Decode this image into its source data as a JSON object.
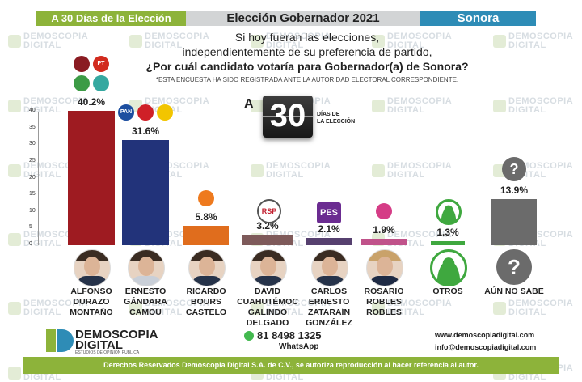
{
  "header": {
    "left": "A 30 Días de la Elección",
    "center": "Elección Gobernador 2021",
    "right": "Sonora"
  },
  "question": {
    "line1": "Si hoy fueran las elecciones,",
    "line2": "independientemente de su preferencia de partido,",
    "line3": "¿Por cuál candidato votaría para Gobernador(a) de Sonora?",
    "note": "*ESTA ENCUESTA HA SIDO REGISTRADA ANTE LA AUTORIDAD ELECTORAL CORRESPONDIENTE."
  },
  "countdown": {
    "prefix": "A",
    "number": "30",
    "label_line1": "DÍAS DE",
    "label_line2": "LA ELECCIÓN"
  },
  "watermark": {
    "line1": "DEMOSCOPIA",
    "line2": "DIGITAL"
  },
  "chart_data": {
    "type": "bar",
    "ylim": [
      0,
      40
    ],
    "yticks": [
      "0",
      "5",
      "10",
      "15",
      "20",
      "25",
      "30",
      "35",
      "40"
    ],
    "categories": [
      {
        "lines": [
          "ALFONSO",
          "DURAZO",
          "MONTAÑO"
        ]
      },
      {
        "lines": [
          "ERNESTO",
          "GÁNDARA",
          "CAMOU"
        ]
      },
      {
        "lines": [
          "RICARDO",
          "BOURS",
          "CASTELO"
        ]
      },
      {
        "lines": [
          "DAVID",
          "CUAHUTÉMOC",
          "GALINDO",
          "DELGADO"
        ]
      },
      {
        "lines": [
          "CARLOS",
          "ERNESTO",
          "ZATARAÍN",
          "GONZÁLEZ"
        ]
      },
      {
        "lines": [
          "ROSARIO",
          "ROBLES",
          "ROBLES"
        ]
      },
      {
        "lines": [
          "OTROS"
        ]
      },
      {
        "lines": [
          "AÚN NO SABE"
        ]
      }
    ],
    "values": [
      40.2,
      31.6,
      5.8,
      3.2,
      2.1,
      1.9,
      1.3,
      13.9
    ],
    "labels": [
      "40.2%",
      "31.6%",
      "5.8%",
      "3.2%",
      "2.1%",
      "1.9%",
      "1.3%",
      "13.9%"
    ],
    "colors": [
      "#9e1b21",
      "#22337a",
      "#e06d1d",
      "#7e5a5a",
      "#56406f",
      "#c0528a",
      "#3fa83f",
      "#6b6b6b"
    ],
    "party_logos": [
      {
        "names": [
          "morena-icon",
          "pt-icon",
          "verde-icon",
          "nueva-alianza-icon"
        ],
        "texts": [
          "",
          "PT",
          "",
          ""
        ],
        "colors": [
          "#8a1b22",
          "#d22b1e",
          "#3c9b45",
          "#35a8a0"
        ]
      },
      {
        "names": [
          "pan-icon",
          "pri-icon",
          "prd-icon"
        ],
        "texts": [
          "PAN",
          "",
          ""
        ],
        "colors": [
          "#1d4fa0",
          "#cf2027",
          "#f2c500"
        ]
      },
      {
        "names": [
          "movimiento-ciudadano-icon"
        ],
        "texts": [
          ""
        ],
        "colors": [
          "#ee7a1e"
        ]
      },
      {
        "names": [
          "rsp-icon"
        ],
        "texts": [
          "RSP"
        ],
        "colors": [
          "#c21f2f"
        ]
      },
      {
        "names": [
          "pes-icon"
        ],
        "texts": [
          "PES"
        ],
        "colors": [
          "#6b2c91"
        ]
      },
      {
        "names": [
          "fuerza-por-mexico-icon"
        ],
        "texts": [
          ""
        ],
        "colors": [
          "#d53c86"
        ]
      },
      {
        "names": [
          "user-icon"
        ],
        "texts": [
          ""
        ],
        "colors": [
          "#3fa83f"
        ]
      },
      {
        "names": [
          "question-icon"
        ],
        "texts": [
          "?"
        ],
        "colors": [
          "#6b6b6b"
        ]
      }
    ]
  },
  "branding": {
    "name1": "DEMOSCOPIA",
    "name2": "DIGITAL",
    "tagline": "ESTUDIOS DE OPINIÓN PÚBLICA",
    "phone": "81 8498 1325",
    "phone_label": "WhatsApp",
    "website": "www.demoscopiadigital.com",
    "email": "info@demoscopiadigital.com"
  },
  "footer": "Derechos Reservados Demoscopia Digital S.A. de C.V., se autoriza reproducción al hacer referencia al autor."
}
